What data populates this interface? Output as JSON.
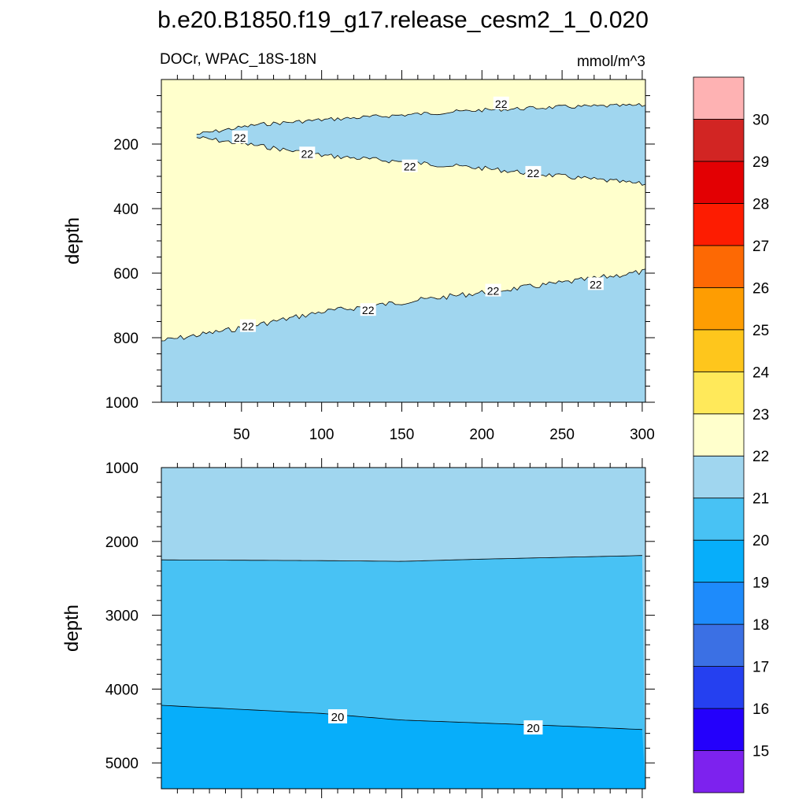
{
  "title": "b.e20.B1850.f19_g17.release_cesm2_1_0.020",
  "chart_data": {
    "type": "contour",
    "variable_label": "DOCr, WPAC_18S-18N",
    "units": "mmol/m^3",
    "xlim": [
      0,
      302
    ],
    "x_ticks": [
      50,
      100,
      150,
      200,
      250,
      300
    ],
    "top_panel": {
      "ylabel": "depth",
      "ylim": [
        1000,
        0
      ],
      "y_ticks": [
        200,
        400,
        600,
        800,
        1000
      ],
      "background_level": "21-22",
      "regions": [
        {
          "range": "22-23",
          "color": "#ffffcc",
          "description_bounds": "between upper band and lower 22 contour"
        },
        {
          "range": "21-22",
          "color": "#a0d6ef",
          "description_bounds": "upper lens and deep layer"
        }
      ],
      "contours": [
        {
          "level": 22,
          "name": "upper-lens-top",
          "x": [
            22,
            60,
            100,
            150,
            200,
            250,
            302
          ],
          "y": [
            170,
            140,
            125,
            110,
            95,
            85,
            80
          ]
        },
        {
          "level": 22,
          "name": "upper-lens-bottom",
          "x": [
            22,
            60,
            100,
            150,
            200,
            250,
            302
          ],
          "y": [
            180,
            205,
            235,
            255,
            275,
            300,
            325
          ]
        },
        {
          "level": 22,
          "name": "lower-boundary",
          "x": [
            0,
            50,
            100,
            150,
            200,
            250,
            302
          ],
          "y": [
            810,
            770,
            720,
            690,
            660,
            630,
            595
          ]
        }
      ],
      "contour_labels": [
        {
          "text": "22",
          "x": 212,
          "y": 75
        },
        {
          "text": "22",
          "x": 49,
          "y": 180
        },
        {
          "text": "22",
          "x": 91,
          "y": 230
        },
        {
          "text": "22",
          "x": 155,
          "y": 270
        },
        {
          "text": "22",
          "x": 232,
          "y": 290
        },
        {
          "text": "22",
          "x": 54,
          "y": 765
        },
        {
          "text": "22",
          "x": 129,
          "y": 715
        },
        {
          "text": "22",
          "x": 207,
          "y": 655
        },
        {
          "text": "22",
          "x": 271,
          "y": 635
        }
      ]
    },
    "bottom_panel": {
      "ylabel": "depth",
      "ylim": [
        1000,
        5350
      ],
      "y_ticks": [
        1000,
        2000,
        3000,
        4000,
        5000
      ],
      "contours": [
        {
          "level": 21,
          "x": [
            0,
            100,
            150,
            200,
            302
          ],
          "y": [
            2250,
            2260,
            2270,
            2240,
            2190
          ]
        },
        {
          "level": 20,
          "x": [
            0,
            100,
            150,
            200,
            250,
            302
          ],
          "y": [
            4220,
            4330,
            4420,
            4460,
            4500,
            4550
          ]
        }
      ],
      "regions": [
        {
          "range": "21-22",
          "color": "#a0d6ef"
        },
        {
          "range": "20-21",
          "color": "#48c2f4"
        },
        {
          "range": "19-20",
          "color": "#07aefa"
        }
      ],
      "contour_labels": [
        {
          "text": "20",
          "x": 110,
          "y": 4380
        },
        {
          "text": "20",
          "x": 232,
          "y": 4530
        }
      ]
    },
    "colorbar": {
      "levels": [
        "15",
        "16",
        "17",
        "18",
        "19",
        "20",
        "21",
        "22",
        "23",
        "24",
        "25",
        "26",
        "27",
        "28",
        "29",
        "30"
      ],
      "colors": [
        "#7d22ee",
        "#2400fb",
        "#2540f0",
        "#3b70e4",
        "#1e8bfb",
        "#07aefa",
        "#48c2f4",
        "#a0d6ef",
        "#ffffcc",
        "#ffe95a",
        "#fec61c",
        "#fe9d02",
        "#fd6904",
        "#fd1c01",
        "#e30003",
        "#d22523",
        "#feb2b3"
      ]
    }
  }
}
